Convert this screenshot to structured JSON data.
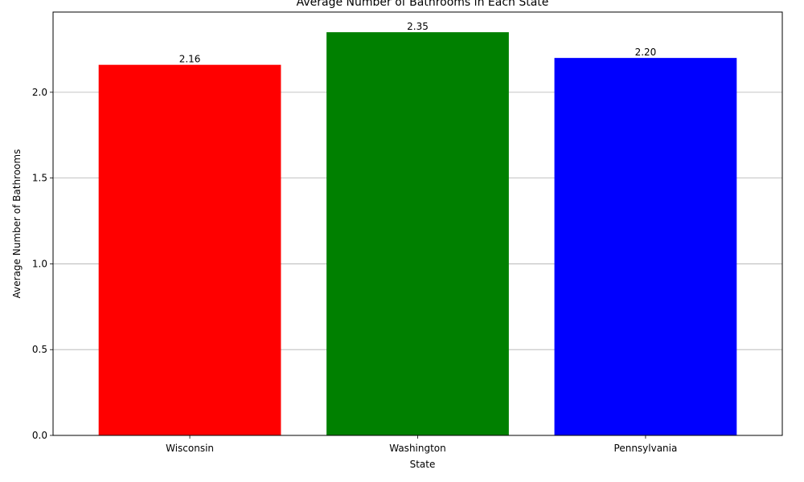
{
  "chart_data": {
    "type": "bar",
    "title": "Average Number of Bathrooms in Each State",
    "xlabel": "State",
    "ylabel": "Average Number of Bathrooms",
    "categories": [
      "Wisconsin",
      "Washington",
      "Pennsylvania"
    ],
    "values": [
      2.16,
      2.35,
      2.2
    ],
    "value_labels": [
      "2.16",
      "2.35",
      "2.20"
    ],
    "colors": [
      "#ff0000",
      "#008000",
      "#0000ff"
    ],
    "ylim": [
      0,
      2.4675
    ],
    "yticks": [
      0.0,
      0.5,
      1.0,
      1.5,
      2.0
    ],
    "ytick_labels": [
      "0.0",
      "0.5",
      "1.0",
      "1.5",
      "2.0"
    ],
    "grid": "y-axis horizontal gridlines",
    "grid_color": "#b0b0b0"
  }
}
